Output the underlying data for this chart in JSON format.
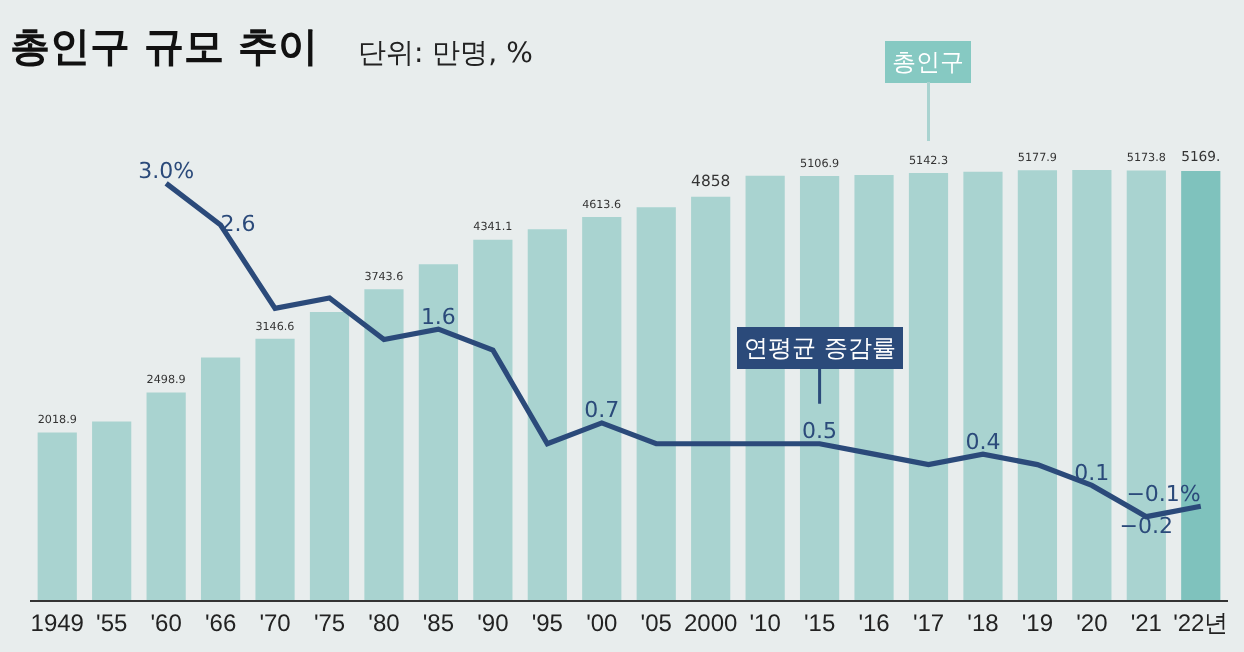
{
  "chart_data": {
    "type": "bar",
    "title": "총인구 규모 추이",
    "subtitle": "단위: 만명, %",
    "categories": [
      "1949",
      "'55",
      "'60",
      "'66",
      "'70",
      "'75",
      "'80",
      "'85",
      "'90",
      "'95",
      "'00",
      "'05",
      "2000",
      "'10",
      "'15",
      "'16",
      "'17",
      "'18",
      "'19",
      "'20",
      "'21",
      "'22년"
    ],
    "series": [
      {
        "name": "총인구",
        "colors": [
          "#a9d3d0",
          "#a9d3d0",
          "#a9d3d0",
          "#a9d3d0",
          "#a9d3d0",
          "#a9d3d0",
          "#a9d3d0",
          "#a9d3d0",
          "#a9d3d0",
          "#a9d3d0",
          "#a9d3d0",
          "#a9d3d0",
          "#a9d3d0",
          "#a9d3d0",
          "#a9d3d0",
          "#a9d3d0",
          "#a9d3d0",
          "#a9d3d0",
          "#a9d3d0",
          "#a9d3d0",
          "#a9d3d0",
          "#7fc2bd"
        ],
        "values": [
          2018.9,
          2150,
          2498.9,
          2920,
          3146.6,
          3470,
          3743.6,
          4045,
          4341.1,
          4465,
          4613.6,
          4730,
          4858,
          5110,
          5106.9,
          5120,
          5142.3,
          5160,
          5177.9,
          5180,
          5173.8,
          5169
        ],
        "value_labels": [
          "2018.9",
          null,
          "2498.9",
          null,
          "3146.6",
          null,
          "3743.6",
          null,
          "4341.1",
          null,
          "4613.6",
          null,
          "4858",
          null,
          "5106.9",
          null,
          "5142.3",
          null,
          "5177.9",
          null,
          "5173.8",
          "5169."
        ]
      },
      {
        "name": "연평균 증감률",
        "type": "line",
        "axis": "y2",
        "color": "#2b4a7a",
        "values": [
          null,
          null,
          3.0,
          2.6,
          1.8,
          1.9,
          1.5,
          1.6,
          1.4,
          0.5,
          0.7,
          0.5,
          0.5,
          0.5,
          0.5,
          0.4,
          0.3,
          0.4,
          0.3,
          0.1,
          -0.2,
          -0.1
        ],
        "value_labels": [
          null,
          null,
          "3.0%",
          "2.6",
          null,
          null,
          null,
          "1.6",
          null,
          null,
          "0.7",
          null,
          null,
          null,
          "0.5",
          null,
          null,
          "0.4",
          null,
          "0.1",
          "−0.2",
          "−0.1%"
        ]
      }
    ],
    "legend": false,
    "grid": false
  }
}
